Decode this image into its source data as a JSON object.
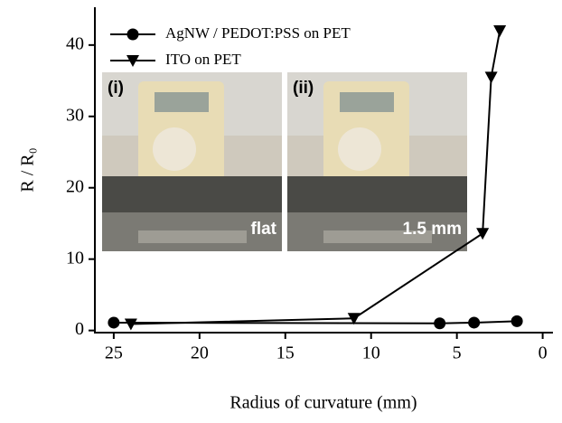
{
  "chart_data": {
    "type": "line",
    "xlabel": "Radius of curvature (mm)",
    "ylabel": "R / R₀",
    "xlim": [
      26.1,
      -0.6
    ],
    "xticks": [
      25,
      20,
      15,
      10,
      5,
      0
    ],
    "ylim": [
      -0.3,
      45.3
    ],
    "yticks": [
      0,
      10,
      20,
      30,
      40
    ],
    "series": [
      {
        "name": "AgNW / PEDOT:PSS on PET",
        "color": "#000000",
        "marker": "circle",
        "x": [
          25,
          6,
          4,
          1.5
        ],
        "values": [
          1.1,
          1.0,
          1.1,
          1.3
        ]
      },
      {
        "name": "ITO on PET",
        "color": "#000000",
        "marker": "triangle-down",
        "x": [
          24,
          11,
          3.5,
          3,
          2.5
        ],
        "values": [
          0.9,
          1.7,
          13.6,
          35.5,
          42
        ]
      }
    ],
    "insets": [
      {
        "label": "(i)",
        "caption": "flat"
      },
      {
        "label": "(ii)",
        "caption": "1.5 mm"
      }
    ]
  }
}
